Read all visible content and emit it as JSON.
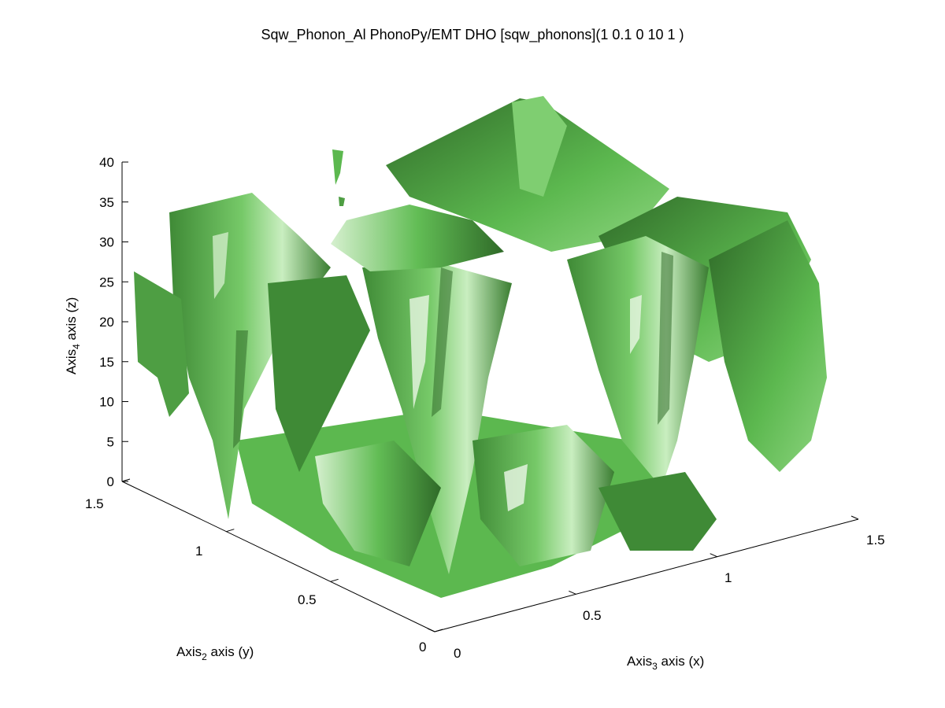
{
  "chart_data": {
    "type": "isosurface",
    "title": "Sqw_Phonon_Al PhonoPy/EMT DHO [sqw_phonons](1 0.1 0 10 1 )",
    "x_axis": {
      "label_prefix": "Axis",
      "label_sub": "3",
      "label_suffix": " axis (x)",
      "ticks": [
        "0",
        "0.5",
        "1",
        "1.5"
      ],
      "range": [
        0,
        1.5
      ]
    },
    "y_axis": {
      "label_prefix": "Axis",
      "label_sub": "2",
      "label_suffix": " axis (y)",
      "ticks": [
        "0",
        "0.5",
        "1",
        "1.5"
      ],
      "range": [
        0,
        1.5
      ]
    },
    "z_axis": {
      "label_prefix": "Axis",
      "label_sub": "4",
      "label_suffix": " axis (z)",
      "ticks": [
        "0",
        "5",
        "10",
        "15",
        "20",
        "25",
        "30",
        "35",
        "40"
      ],
      "range": [
        0,
        40
      ]
    },
    "surface_color": "#5cb84f",
    "surface_shadow_color": "#2f6a28",
    "surface_highlight_color": "#dff0da",
    "grid": false
  }
}
